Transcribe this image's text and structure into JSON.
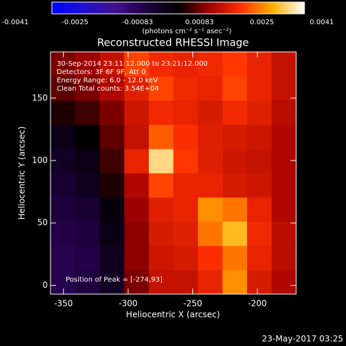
{
  "chart_data": {
    "type": "heatmap",
    "title": "Reconstructed RHESSI Image",
    "xlabel": "Heliocentric X (arcsec)",
    "ylabel": "Heliocentric Y (arcsec)",
    "annotations": [
      "30-Sep-2014 23:11:12.000 to 23:21:12.000",
      "Detectors: 3F 6F 9F, Att 0",
      "Energy Range: 6.0 - 12.0 keV",
      "Clean     Total counts: 3.54E+04"
    ],
    "peak_label": "Position of Peak = [-274,93]",
    "footer": "23-May-2017 03:25",
    "colorbar_label": "(photons cm⁻² s⁻¹ asec⁻²)",
    "clim": [
      -0.0041,
      0.0041
    ],
    "cticks": [
      -0.0041,
      -0.0025,
      -0.00083,
      0.00083,
      0.0025,
      0.0041
    ],
    "colormap": [
      "#0000ff",
      "#2010d0",
      "#401090",
      "#200040",
      "#000000",
      "#a00000",
      "#ff3000",
      "#ffb000",
      "#ffffff"
    ],
    "xlim": [
      -360,
      -170
    ],
    "ylim": [
      -7,
      187
    ],
    "xticks": [
      -350,
      -300,
      -250,
      -200
    ],
    "yticks": [
      0,
      50,
      100,
      150
    ],
    "x_edges": [
      -360,
      -341,
      -322,
      -303,
      -284,
      -265,
      -246,
      -227,
      -208,
      -189,
      -170
    ],
    "y_edges": [
      -7,
      12.4,
      31.8,
      51.2,
      70.6,
      90,
      109.4,
      128.8,
      148.2,
      167.6,
      187
    ],
    "values": [
      [
        -0.0012,
        -0.001,
        -0.0006,
        0.0008,
        0.0014,
        0.0014,
        0.0018,
        0.0028,
        0.0016,
        0.0012
      ],
      [
        -0.0012,
        -0.0011,
        -0.0005,
        0.0009,
        0.0015,
        0.0016,
        0.002,
        0.0026,
        0.0018,
        0.0013
      ],
      [
        -0.0011,
        -0.001,
        -0.0003,
        0.0009,
        0.0016,
        0.0017,
        0.0026,
        0.0032,
        0.0019,
        0.0013
      ],
      [
        -0.001,
        -0.0008,
        -0.0002,
        0.001,
        0.0017,
        0.0018,
        0.0028,
        0.0026,
        0.0018,
        0.0012
      ],
      [
        -0.0008,
        -0.0005,
        0.0002,
        0.0012,
        0.0022,
        0.0018,
        0.0018,
        0.0016,
        0.0015,
        0.0012
      ],
      [
        -0.0006,
        -0.0003,
        0.0004,
        0.0018,
        0.0036,
        0.0021,
        0.0017,
        0.0015,
        0.0014,
        0.0012
      ],
      [
        -0.0004,
        0,
        0.0006,
        0.0014,
        0.0024,
        0.002,
        0.0017,
        0.0016,
        0.0015,
        0.0012
      ],
      [
        0.0002,
        0.0004,
        0.0008,
        0.0015,
        0.0019,
        0.0018,
        0.0016,
        0.0019,
        0.0017,
        0.0013
      ],
      [
        0.0006,
        0.0008,
        0.0012,
        0.0017,
        0.0022,
        0.0019,
        0.0018,
        0.0022,
        0.0018,
        0.0014
      ],
      [
        0.0008,
        0.001,
        0.0014,
        0.0022,
        0.0019,
        0.0018,
        0.0019,
        0.0021,
        0.0018,
        0.0014
      ]
    ]
  }
}
